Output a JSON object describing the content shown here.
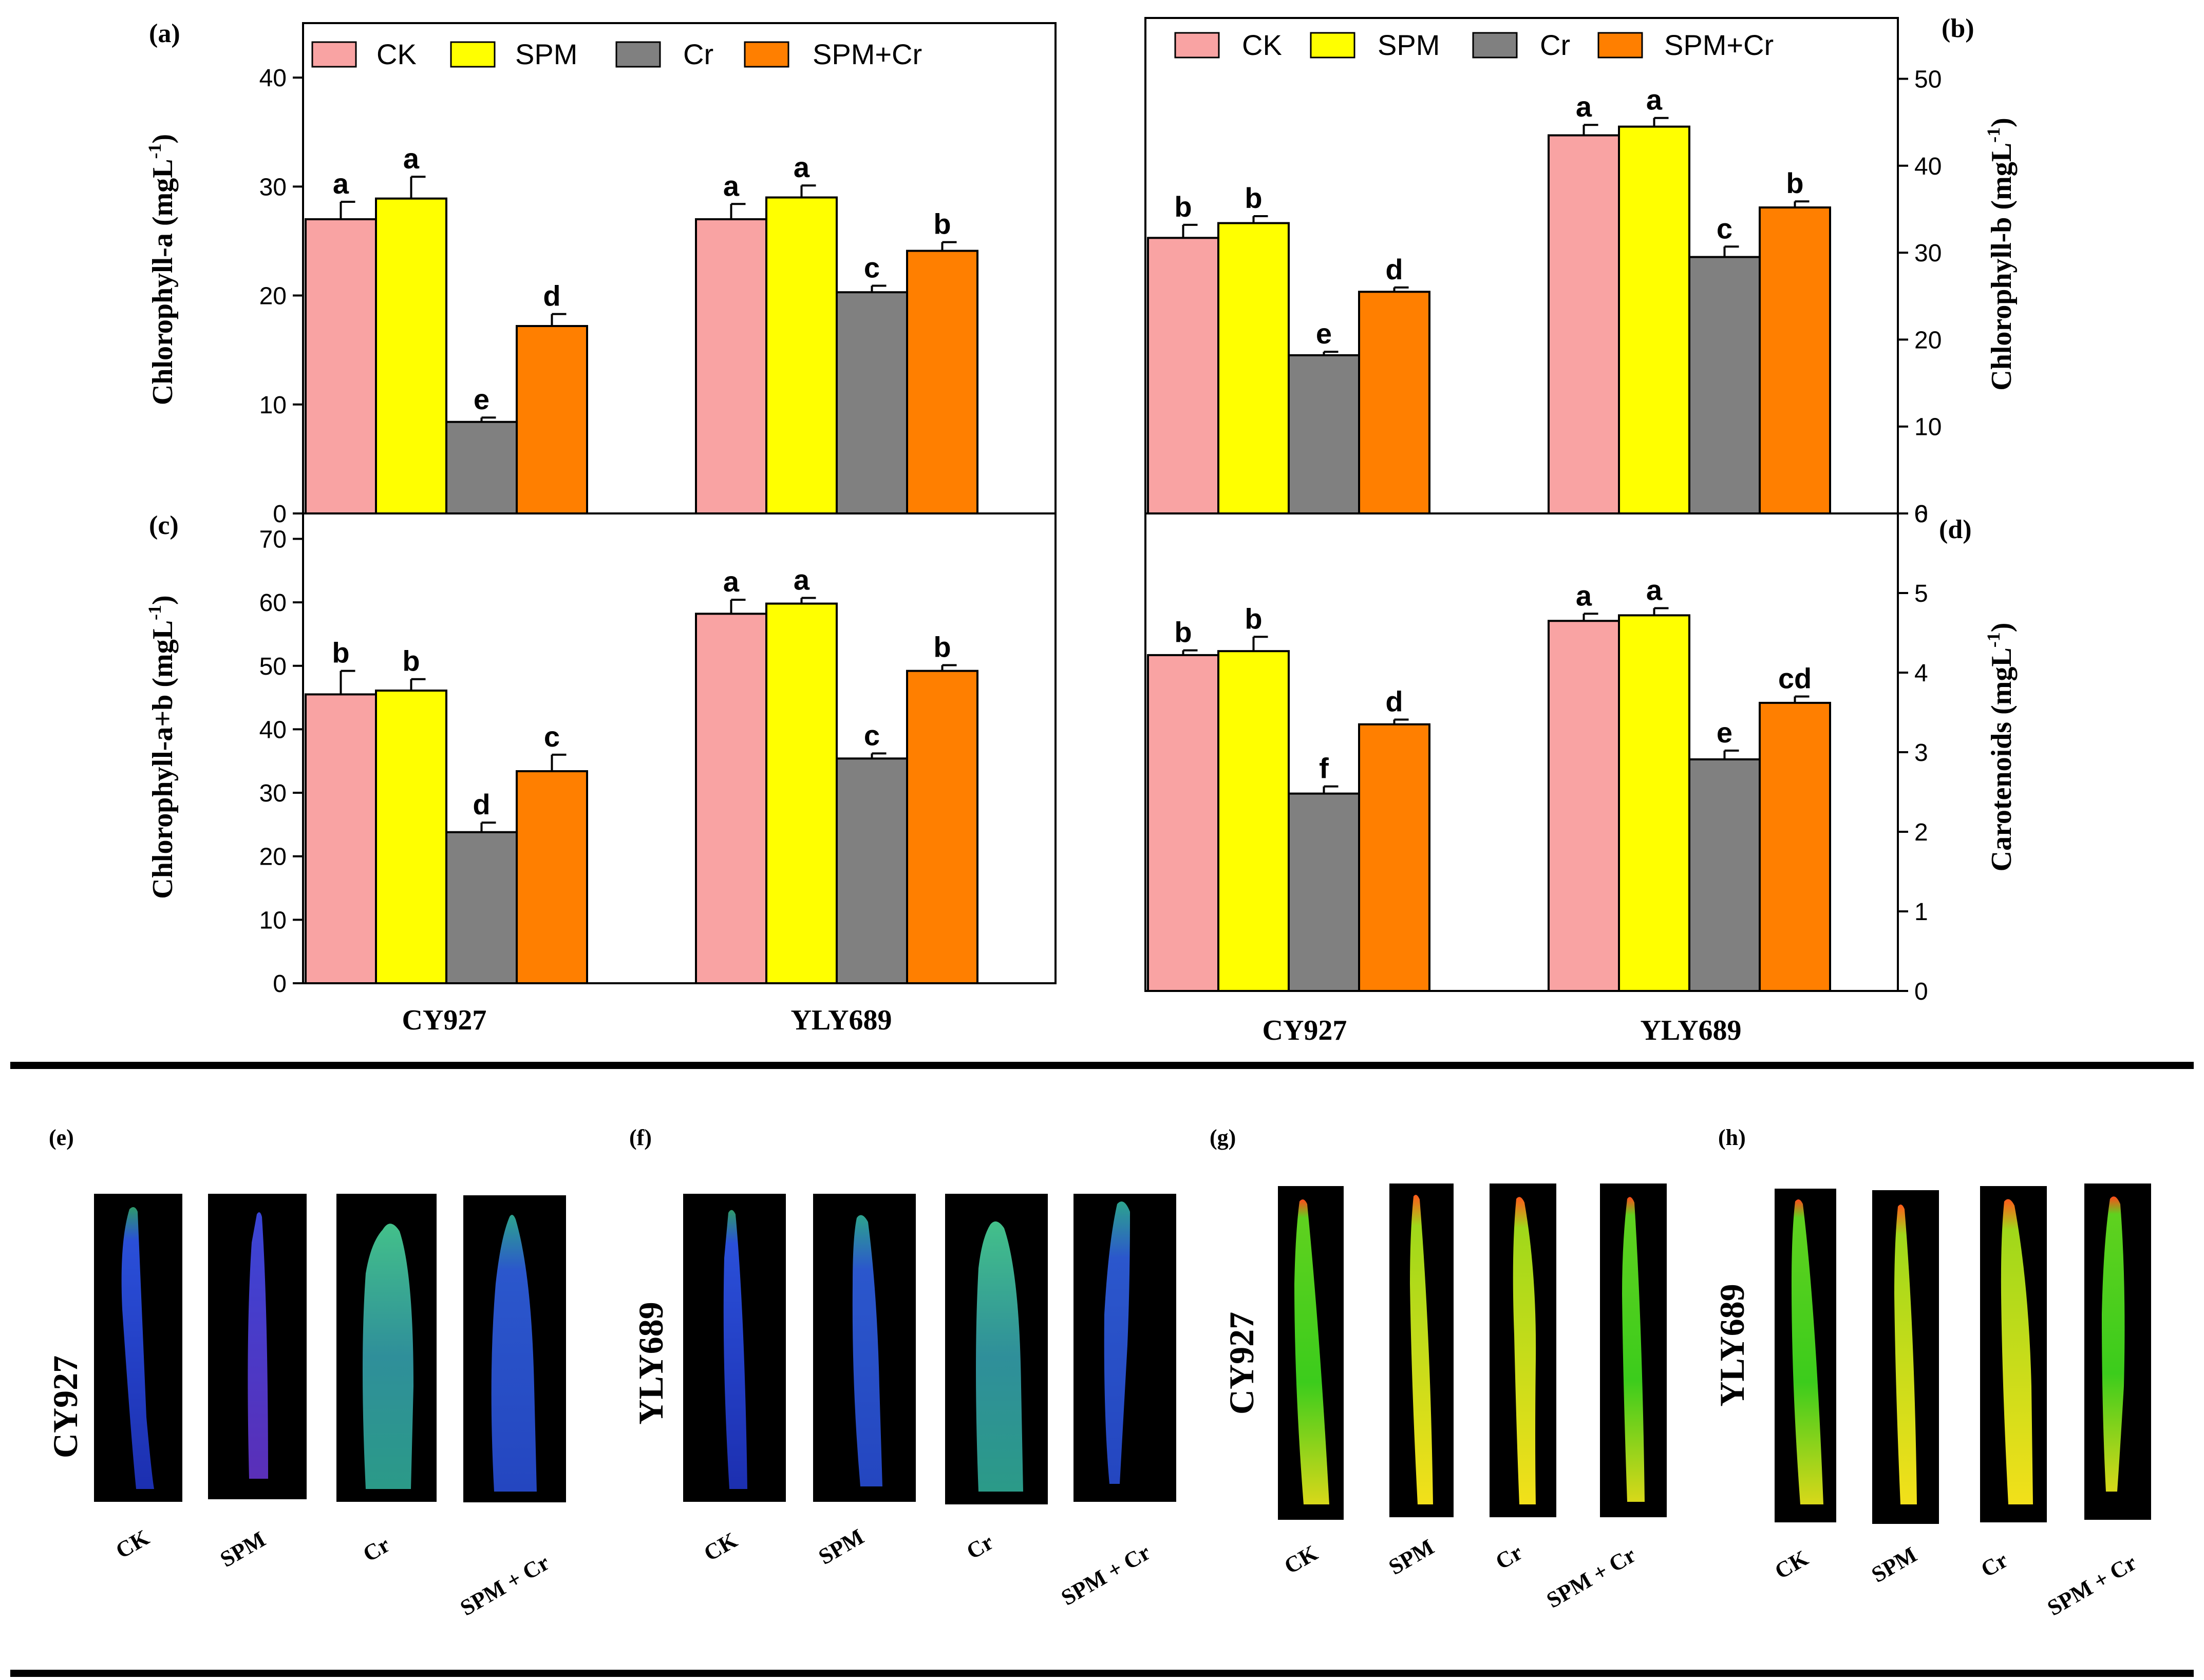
{
  "legend": {
    "items": [
      {
        "label": "CK",
        "color": "#f9a3a3"
      },
      {
        "label": "SPM",
        "color": "#ffff00"
      },
      {
        "label": "Cr",
        "color": "#808080"
      },
      {
        "label": "SPM+Cr",
        "color": "#ff7f00"
      }
    ]
  },
  "chart_data": [
    {
      "id": "a",
      "panel_label": "(a)",
      "type": "bar",
      "ylabel": "Chlorophyll-a (mgL",
      "ylabel_sup": "-1",
      "ylabel_close": ")",
      "ylim": [
        0,
        45
      ],
      "yticks": [
        0,
        10,
        20,
        30,
        40
      ],
      "categories": [
        "CY927",
        "YLY689"
      ],
      "series": [
        {
          "name": "CK",
          "values": [
            27.0,
            27.0
          ],
          "errors": [
            1.6,
            1.4
          ],
          "letters": [
            "a",
            "a"
          ]
        },
        {
          "name": "SPM",
          "values": [
            28.9,
            29.0
          ],
          "errors": [
            2.0,
            1.1
          ],
          "letters": [
            "a",
            "a"
          ]
        },
        {
          "name": "Cr",
          "values": [
            8.4,
            20.3
          ],
          "errors": [
            0.4,
            0.6
          ],
          "letters": [
            "e",
            "c"
          ]
        },
        {
          "name": "SPM+Cr",
          "values": [
            17.2,
            24.1
          ],
          "errors": [
            1.1,
            0.8
          ],
          "letters": [
            "d",
            "b"
          ]
        }
      ]
    },
    {
      "id": "b",
      "panel_label": "(b)",
      "type": "bar",
      "ylabel": "Chlorophyll-b (mgL",
      "ylabel_sup": "-1",
      "ylabel_close": ")",
      "ylim": [
        0,
        57
      ],
      "yticks": [
        0,
        10,
        20,
        30,
        40,
        50
      ],
      "categories": [
        "CY927",
        "YLY689"
      ],
      "series": [
        {
          "name": "CK",
          "values": [
            31.7,
            43.5
          ],
          "errors": [
            1.5,
            1.2
          ],
          "letters": [
            "b",
            "a"
          ]
        },
        {
          "name": "SPM",
          "values": [
            33.4,
            44.5
          ],
          "errors": [
            0.8,
            1.0
          ],
          "letters": [
            "b",
            "a"
          ]
        },
        {
          "name": "Cr",
          "values": [
            18.2,
            29.5
          ],
          "errors": [
            0.4,
            1.2
          ],
          "letters": [
            "e",
            "c"
          ]
        },
        {
          "name": "SPM+Cr",
          "values": [
            25.5,
            35.2
          ],
          "errors": [
            0.5,
            0.7
          ],
          "letters": [
            "d",
            "b"
          ]
        }
      ]
    },
    {
      "id": "c",
      "panel_label": "(c)",
      "type": "bar",
      "ylabel": "Chlorophyll-a+b (mgL",
      "ylabel_sup": "-1",
      "ylabel_close": ")",
      "ylim": [
        0,
        74
      ],
      "yticks": [
        0,
        10,
        20,
        30,
        40,
        50,
        60,
        70
      ],
      "categories": [
        "CY927",
        "YLY689"
      ],
      "series": [
        {
          "name": "CK",
          "values": [
            45.5,
            58.2
          ],
          "errors": [
            3.7,
            2.2
          ],
          "letters": [
            "b",
            "a"
          ]
        },
        {
          "name": "SPM",
          "values": [
            46.1,
            59.8
          ],
          "errors": [
            1.8,
            0.9
          ],
          "letters": [
            "b",
            "a"
          ]
        },
        {
          "name": "Cr",
          "values": [
            23.8,
            35.4
          ],
          "errors": [
            1.5,
            0.8
          ],
          "letters": [
            "d",
            "c"
          ]
        },
        {
          "name": "SPM+Cr",
          "values": [
            33.4,
            49.2
          ],
          "errors": [
            2.6,
            0.9
          ],
          "letters": [
            "c",
            "b"
          ]
        }
      ]
    },
    {
      "id": "d",
      "panel_label": "(d)",
      "type": "bar",
      "ylabel": "Carotenoids (mgL",
      "ylabel_sup": "-1",
      "ylabel_close": ")",
      "ylim": [
        0,
        6
      ],
      "yticks": [
        0,
        1,
        2,
        3,
        4,
        5,
        6
      ],
      "categories": [
        "CY927",
        "YLY689"
      ],
      "series": [
        {
          "name": "CK",
          "values": [
            4.22,
            4.65
          ],
          "errors": [
            0.06,
            0.09
          ],
          "letters": [
            "b",
            "a"
          ]
        },
        {
          "name": "SPM",
          "values": [
            4.27,
            4.72
          ],
          "errors": [
            0.18,
            0.09
          ],
          "letters": [
            "b",
            "a"
          ]
        },
        {
          "name": "Cr",
          "values": [
            2.48,
            2.91
          ],
          "errors": [
            0.09,
            0.11
          ],
          "letters": [
            "f",
            "e"
          ]
        },
        {
          "name": "SPM+Cr",
          "values": [
            3.35,
            3.62
          ],
          "errors": [
            0.06,
            0.08
          ],
          "letters": [
            "d",
            "cd"
          ]
        }
      ]
    }
  ],
  "image_panels": [
    {
      "label": "(e)",
      "cultivar": "CY927",
      "stain": "blue",
      "captions": [
        "CK",
        "SPM",
        "Cr",
        "SPM + Cr"
      ]
    },
    {
      "label": "(f)",
      "cultivar": "YLY689",
      "stain": "blue",
      "captions": [
        "CK",
        "SPM",
        "Cr",
        "SPM + Cr"
      ]
    },
    {
      "label": "(g)",
      "cultivar": "CY927",
      "stain": "green",
      "captions": [
        "CK",
        "SPM",
        "Cr",
        "SPM + Cr"
      ]
    },
    {
      "label": "(h)",
      "cultivar": "YLY689",
      "stain": "green",
      "captions": [
        "CK",
        "SPM",
        "Cr",
        "SPM + Cr"
      ]
    }
  ]
}
